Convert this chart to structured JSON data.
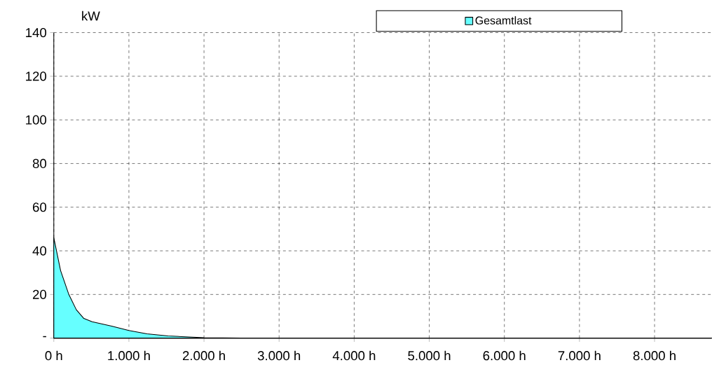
{
  "chart_data": {
    "type": "area",
    "ylabel": "kW",
    "x": [
      0,
      90,
      200,
      300,
      400,
      510,
      770,
      1000,
      1240,
      1520,
      2000,
      2500,
      4000,
      6000,
      8760
    ],
    "series": [
      {
        "name": "Gesamtlast",
        "color": "#66ffff",
        "values": [
          46,
          31,
          20,
          13,
          9,
          7.5,
          5.5,
          3.5,
          2,
          1,
          0.2,
          0,
          0,
          0,
          0
        ]
      }
    ],
    "xlim": [
      0,
      8760
    ],
    "ylim": [
      0,
      140
    ],
    "xticks": [
      {
        "value": 0,
        "label": "0 h"
      },
      {
        "value": 1000,
        "label": "1.000 h"
      },
      {
        "value": 2000,
        "label": "2.000 h"
      },
      {
        "value": 3000,
        "label": "3.000 h"
      },
      {
        "value": 4000,
        "label": "4.000 h"
      },
      {
        "value": 5000,
        "label": "5.000 h"
      },
      {
        "value": 6000,
        "label": "6.000 h"
      },
      {
        "value": 7000,
        "label": "7.000 h"
      },
      {
        "value": 8000,
        "label": "8.000 h"
      }
    ],
    "yticks": [
      {
        "value": 0,
        "label": "-"
      },
      20,
      40,
      60,
      80,
      100,
      120,
      140
    ],
    "grid": true,
    "legend": "top"
  }
}
